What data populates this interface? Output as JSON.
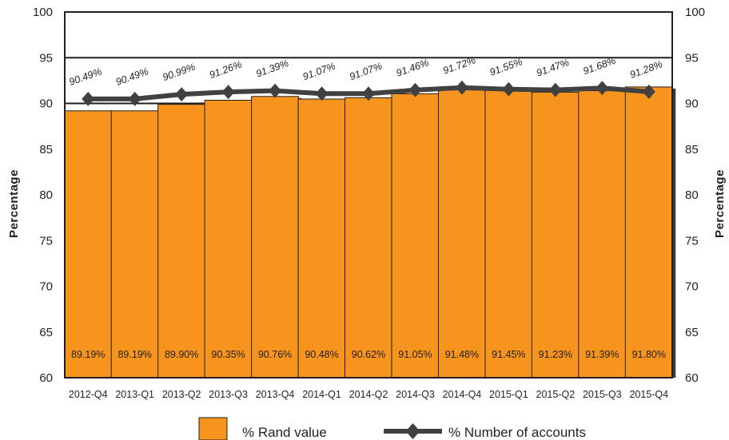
{
  "chart_data": {
    "type": "bar",
    "categories": [
      "2012-Q4",
      "2013-Q1",
      "2013-Q2",
      "2013-Q3",
      "2013-Q4",
      "2014-Q1",
      "2014-Q2",
      "2014-Q3",
      "2014-Q4",
      "2015-Q1",
      "2015-Q2",
      "2015-Q3",
      "2015-Q4"
    ],
    "series": [
      {
        "name": "% Rand value",
        "type": "bar",
        "color": "#f7941d",
        "values": [
          89.19,
          89.19,
          89.9,
          90.35,
          90.76,
          90.48,
          90.62,
          91.05,
          91.48,
          91.45,
          91.23,
          91.39,
          91.8
        ],
        "labels": [
          "89.19%",
          "89.19%",
          "89.90%",
          "90.35%",
          "90.76%",
          "90.48%",
          "90.62%",
          "91.05%",
          "91.48%",
          "91.45%",
          "91.23%",
          "91.39%",
          "91.80%"
        ]
      },
      {
        "name": "% Number of accounts",
        "type": "line",
        "color": "#414042",
        "values": [
          90.49,
          90.49,
          90.99,
          91.26,
          91.39,
          91.07,
          91.07,
          91.46,
          91.72,
          91.55,
          91.47,
          91.68,
          91.28
        ],
        "labels": [
          "90.49%",
          "90.49%",
          "90.99%",
          "91.26%",
          "91.39%",
          "91.07%",
          "91.07%",
          "91.46%",
          "91.72%",
          "91.55%",
          "91.47%",
          "91.68%",
          "91.28%"
        ]
      }
    ],
    "ylabel": "Percentage",
    "ylabel_right": "Percentage",
    "ylim": [
      60,
      100
    ],
    "yticks": [
      60,
      65,
      70,
      75,
      80,
      85,
      90,
      95,
      100
    ],
    "grid": true,
    "legend_position": "bottom"
  }
}
